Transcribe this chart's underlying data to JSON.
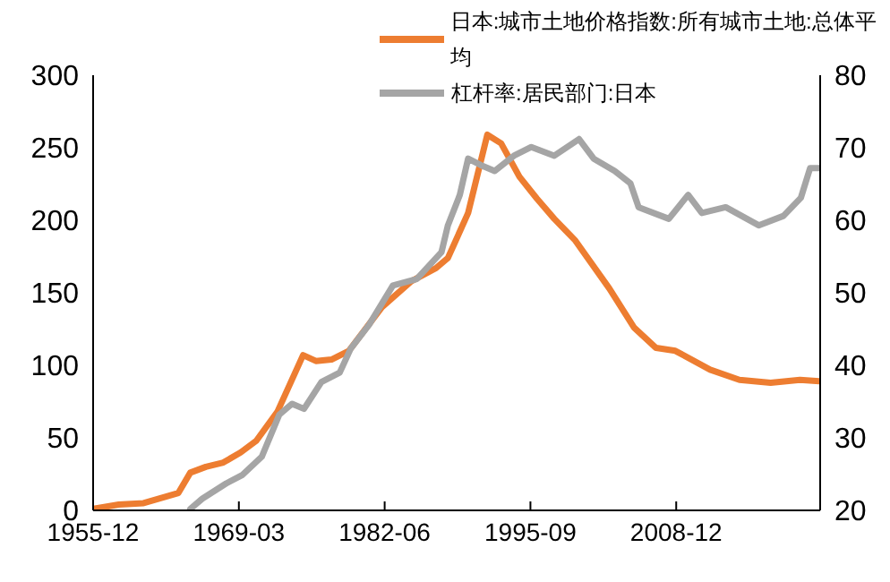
{
  "chart_data": {
    "type": "line",
    "series": [
      {
        "name": "日本:城市土地价格指数:所有城市土地:总体平均",
        "color": "#ed7d31",
        "x": [
          "1955-12",
          "1958-04",
          "1960-07",
          "1963-09",
          "1964-10",
          "1966-03",
          "1967-10",
          "1969-05",
          "1970-10",
          "1972-09",
          "1975-01",
          "1976-03",
          "1977-08",
          "1979-03",
          "1982-03",
          "1984-11",
          "1987-02",
          "1988-03",
          "1990-01",
          "1991-10",
          "1993-01",
          "1994-09",
          "1996-04",
          "1997-11",
          "1999-10",
          "2002-11",
          "2005-02",
          "2007-02",
          "2008-11",
          "2012-01",
          "2014-09",
          "2017-07",
          "2020-03",
          "2021-12"
        ],
        "values": [
          1,
          4,
          5,
          12,
          26,
          30,
          33,
          40,
          48,
          68,
          107,
          103,
          104,
          110,
          140,
          158,
          167,
          174,
          205,
          259,
          253,
          230,
          215,
          201,
          186,
          153,
          126,
          112,
          110,
          97,
          90,
          88,
          90,
          89
        ]
      },
      {
        "name": "杠杆率:居民部门:日本",
        "color": "#a5a5a5",
        "axis": "y2",
        "x": [
          "1964-10",
          "1965-11",
          "1968-01",
          "1969-07",
          "1971-04",
          "1972-11",
          "1974-01",
          "1975-02",
          "1976-09",
          "1978-05",
          "1979-05",
          "1981-01",
          "1983-03",
          "1985-05",
          "1987-08",
          "1988-03",
          "1989-04",
          "1990-01",
          "1991-03",
          "1992-06",
          "1994-03",
          "1995-10",
          "1997-11",
          "2000-02",
          "2001-06",
          "2003-05",
          "2004-10",
          "2005-07",
          "2008-04",
          "2010-01",
          "2011-04",
          "2013-06",
          "2016-06",
          "2018-09",
          "2020-04",
          "2021-02",
          "2021-12"
        ],
        "values": [
          20.2,
          21.6,
          23.7,
          24.9,
          27.4,
          33.2,
          34.7,
          34.0,
          37.7,
          39.0,
          42.3,
          45.6,
          51.0,
          51.9,
          55.6,
          59.3,
          63.5,
          68.5,
          67.6,
          66.8,
          68.9,
          70.1,
          68.9,
          71.2,
          68.5,
          66.8,
          65.1,
          61.8,
          60.2,
          63.5,
          61.0,
          61.8,
          59.3,
          60.6,
          63.1,
          67.2,
          67.2
        ]
      }
    ],
    "xlim": [
      "1955-12",
      "2022-01"
    ],
    "xticks": [
      "1955-12",
      "1969-03",
      "1982-06",
      "1995-09",
      "2008-12"
    ],
    "ylim": [
      0,
      300
    ],
    "yticks": [
      0,
      50,
      100,
      150,
      200,
      250,
      300
    ],
    "y2lim": [
      20,
      80
    ],
    "y2ticks": [
      20,
      30,
      40,
      50,
      60,
      70,
      80
    ],
    "legend": "top",
    "grid": false,
    "marker": "none",
    "line_style": "solid"
  }
}
